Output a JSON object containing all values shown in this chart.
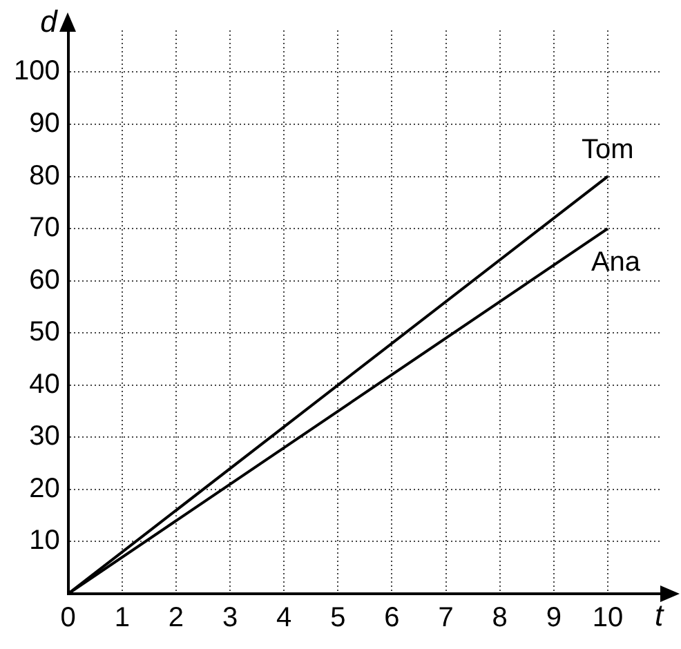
{
  "chart_data": {
    "type": "line",
    "xlabel": "t",
    "ylabel": "d",
    "x": [
      0,
      10
    ],
    "series": [
      {
        "name": "Tom",
        "color": "#000000",
        "values": [
          0,
          80
        ]
      },
      {
        "name": "Ana",
        "color": "#000000",
        "values": [
          0,
          70
        ]
      }
    ],
    "xlim": [
      0,
      11
    ],
    "ylim": [
      0,
      108
    ],
    "xticks": [
      0,
      1,
      2,
      3,
      4,
      5,
      6,
      7,
      8,
      9,
      10
    ],
    "yticks": [
      {
        "value": 0,
        "label": null
      },
      10,
      20,
      30,
      40,
      50,
      60,
      70,
      80,
      90,
      100
    ],
    "grid": true,
    "legend": false,
    "marker": "none",
    "line_style": "solid"
  }
}
